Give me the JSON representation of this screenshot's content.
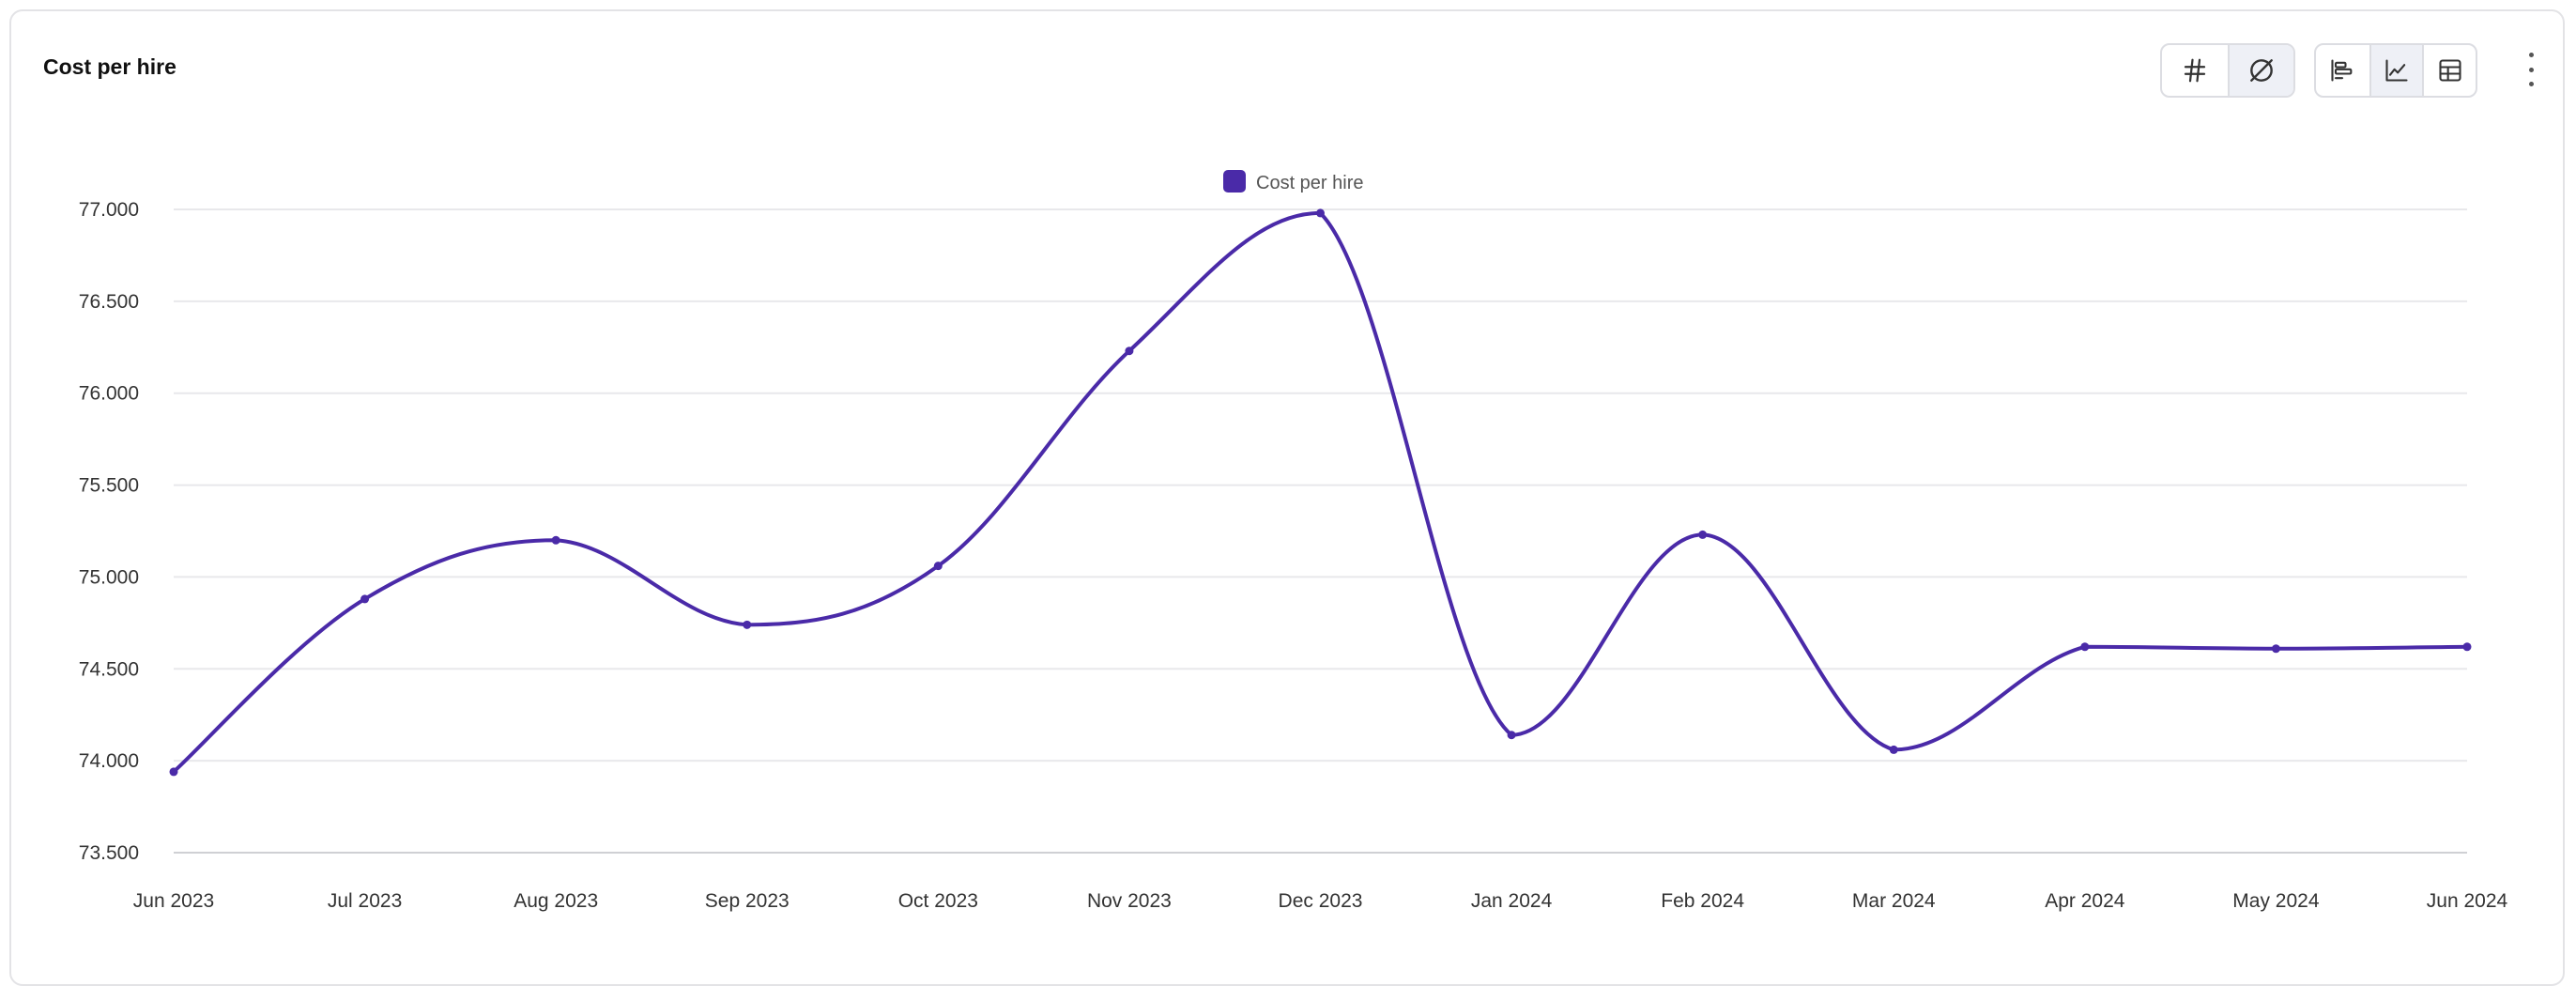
{
  "widget": {
    "title": "Cost per hire",
    "toolbar": {
      "group1": [
        {
          "name": "number-format-icon",
          "active": false
        },
        {
          "name": "empty-set-icon",
          "active": true
        }
      ],
      "group2": [
        {
          "name": "bar-chart-icon",
          "active": false
        },
        {
          "name": "line-chart-icon",
          "active": true
        },
        {
          "name": "table-icon",
          "active": false
        }
      ],
      "more_icon": "more-vertical-icon"
    }
  },
  "chart_data": {
    "type": "line",
    "title": "",
    "xlabel": "",
    "ylabel": "",
    "legend_position": "top-center",
    "grid": true,
    "categories": [
      "Jun 2023",
      "Jul 2023",
      "Aug 2023",
      "Sep 2023",
      "Oct 2023",
      "Nov 2023",
      "Dec 2023",
      "Jan 2024",
      "Feb 2024",
      "Mar 2024",
      "Apr 2024",
      "May 2024",
      "Jun 2024"
    ],
    "series": [
      {
        "name": "Cost per hire",
        "color": "#4a2aa8",
        "values": [
          73940,
          74880,
          75200,
          74740,
          75060,
          76230,
          76980,
          74140,
          75230,
          74060,
          74620,
          74610,
          74620
        ]
      }
    ],
    "ylim": [
      73500,
      77000
    ],
    "yticks": [
      73500,
      74000,
      74500,
      75000,
      75500,
      76000,
      76500,
      77000
    ],
    "ytick_labels": [
      "73.500",
      "74.000",
      "74.500",
      "75.000",
      "75.500",
      "76.000",
      "76.500",
      "77.000"
    ]
  }
}
